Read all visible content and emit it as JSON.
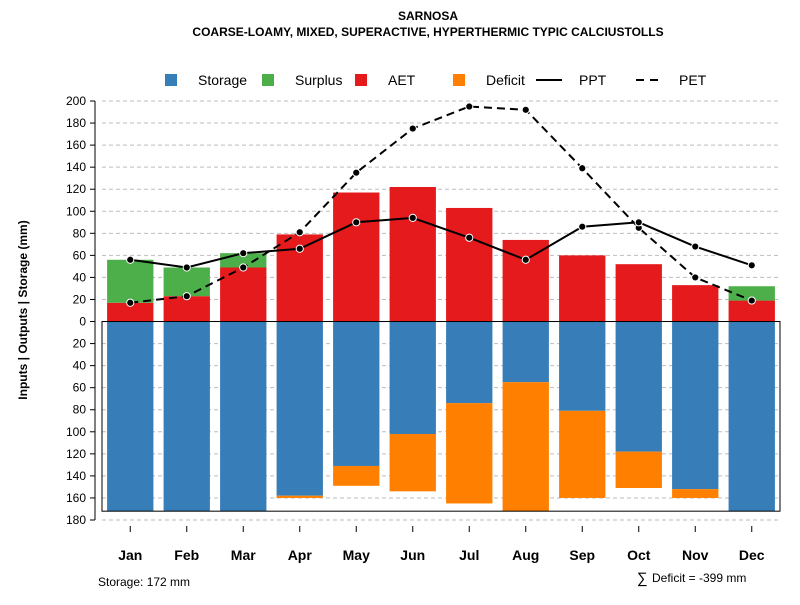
{
  "chart_data": {
    "type": "bar",
    "title": "SARNOSA",
    "subtitle": "COARSE-LOAMY, MIXED, SUPERACTIVE, HYPERTHERMIC TYPIC CALCIUSTOLLS",
    "ylabel": "Inputs | Outputs | Storage    (mm)",
    "ylim": [
      -180,
      200
    ],
    "yticks": [
      200,
      180,
      160,
      140,
      120,
      100,
      80,
      60,
      40,
      20,
      0,
      -20,
      -40,
      -60,
      -80,
      -100,
      -120,
      -140,
      -160,
      -180
    ],
    "categories": [
      "Jan",
      "Feb",
      "Mar",
      "Apr",
      "May",
      "Jun",
      "Jul",
      "Aug",
      "Sep",
      "Oct",
      "Nov",
      "Dec"
    ],
    "legend": [
      {
        "name": "Storage",
        "kind": "box",
        "color": "#377EB8"
      },
      {
        "name": "Surplus",
        "kind": "box",
        "color": "#4DAF4A"
      },
      {
        "name": "AET",
        "kind": "box",
        "color": "#E41A1C"
      },
      {
        "name": "Deficit",
        "kind": "box",
        "color": "#FF7F00"
      },
      {
        "name": "PPT",
        "kind": "line",
        "color": "#000000"
      },
      {
        "name": "PET",
        "kind": "dash",
        "color": "#000000"
      }
    ],
    "series": [
      {
        "name": "AET",
        "color": "#E41A1C",
        "values": [
          17,
          23,
          49,
          79,
          117,
          122,
          103,
          74,
          60,
          52,
          33,
          19
        ]
      },
      {
        "name": "Surplus",
        "color": "#4DAF4A",
        "values": [
          39,
          26,
          13,
          0,
          0,
          0,
          0,
          0,
          0,
          0,
          0,
          13
        ]
      },
      {
        "name": "Storage",
        "color": "#377EB8",
        "values": [
          172,
          172,
          172,
          158,
          131,
          102,
          74,
          55,
          81,
          118,
          152,
          172
        ]
      },
      {
        "name": "Deficit",
        "color": "#FF7F00",
        "values": [
          0,
          0,
          0,
          2,
          18,
          52,
          91,
          117,
          79,
          33,
          8,
          0
        ]
      },
      {
        "name": "PPT",
        "color": "#000000",
        "values": [
          56,
          49,
          62,
          66,
          90,
          94,
          76,
          56,
          86,
          90,
          68,
          51
        ]
      },
      {
        "name": "PET",
        "color": "#000000",
        "values": [
          17,
          23,
          49,
          81,
          135,
          175,
          195,
          192,
          139,
          85,
          40,
          19
        ]
      }
    ],
    "storage_capacity": 172,
    "grid": true,
    "legend_position": "top"
  },
  "footer": {
    "storage_text": "Storage: 172 mm",
    "deficit_symbol": "∑",
    "deficit_text": "Deficit = -399 mm"
  }
}
